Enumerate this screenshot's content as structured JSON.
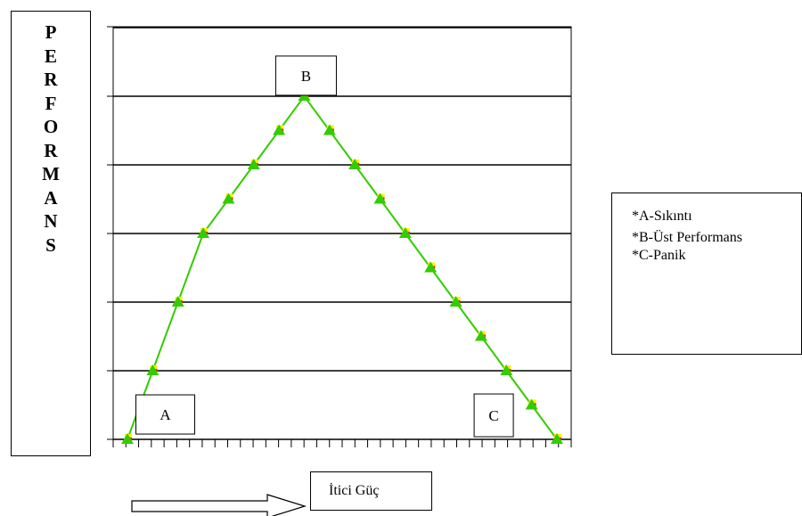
{
  "y_axis_label_letters": [
    "P",
    "E",
    "R",
    "F",
    "O",
    "R",
    "M",
    "A",
    "N",
    "S"
  ],
  "legend": {
    "items": [
      "*A-Sıkıntı",
      "*B-Üst Performans",
      "*C-Panik"
    ]
  },
  "x_axis_label": "İtici Güç",
  "colors": {
    "line": "#33cc00",
    "marker_fill": "#33cc00",
    "marker_accent": "#ffee00",
    "marker_accent_red": "#dd2200",
    "grid": "#000000"
  },
  "chart_data": {
    "type": "line",
    "title": "",
    "xlabel": "İtici Güç",
    "ylabel": "PERFORMANS",
    "x": [
      0,
      1,
      2,
      3,
      4,
      5,
      6,
      7,
      8,
      9,
      10,
      11,
      12,
      13,
      14,
      15,
      16,
      17
    ],
    "series": [
      {
        "values": [
          0,
          1,
          2,
          3,
          3.5,
          4,
          4.5,
          5,
          4.5,
          4,
          3.5,
          3,
          2.5,
          2,
          1.5,
          1,
          0.5,
          0
        ]
      }
    ],
    "ylim": [
      0,
      6
    ],
    "grid": true,
    "annotations": [
      {
        "text": "A",
        "x": 1.5,
        "y": 0.35
      },
      {
        "text": "B",
        "x": 7,
        "y": 5.3
      },
      {
        "text": "C",
        "x": 14.5,
        "y": 0.35
      }
    ]
  }
}
